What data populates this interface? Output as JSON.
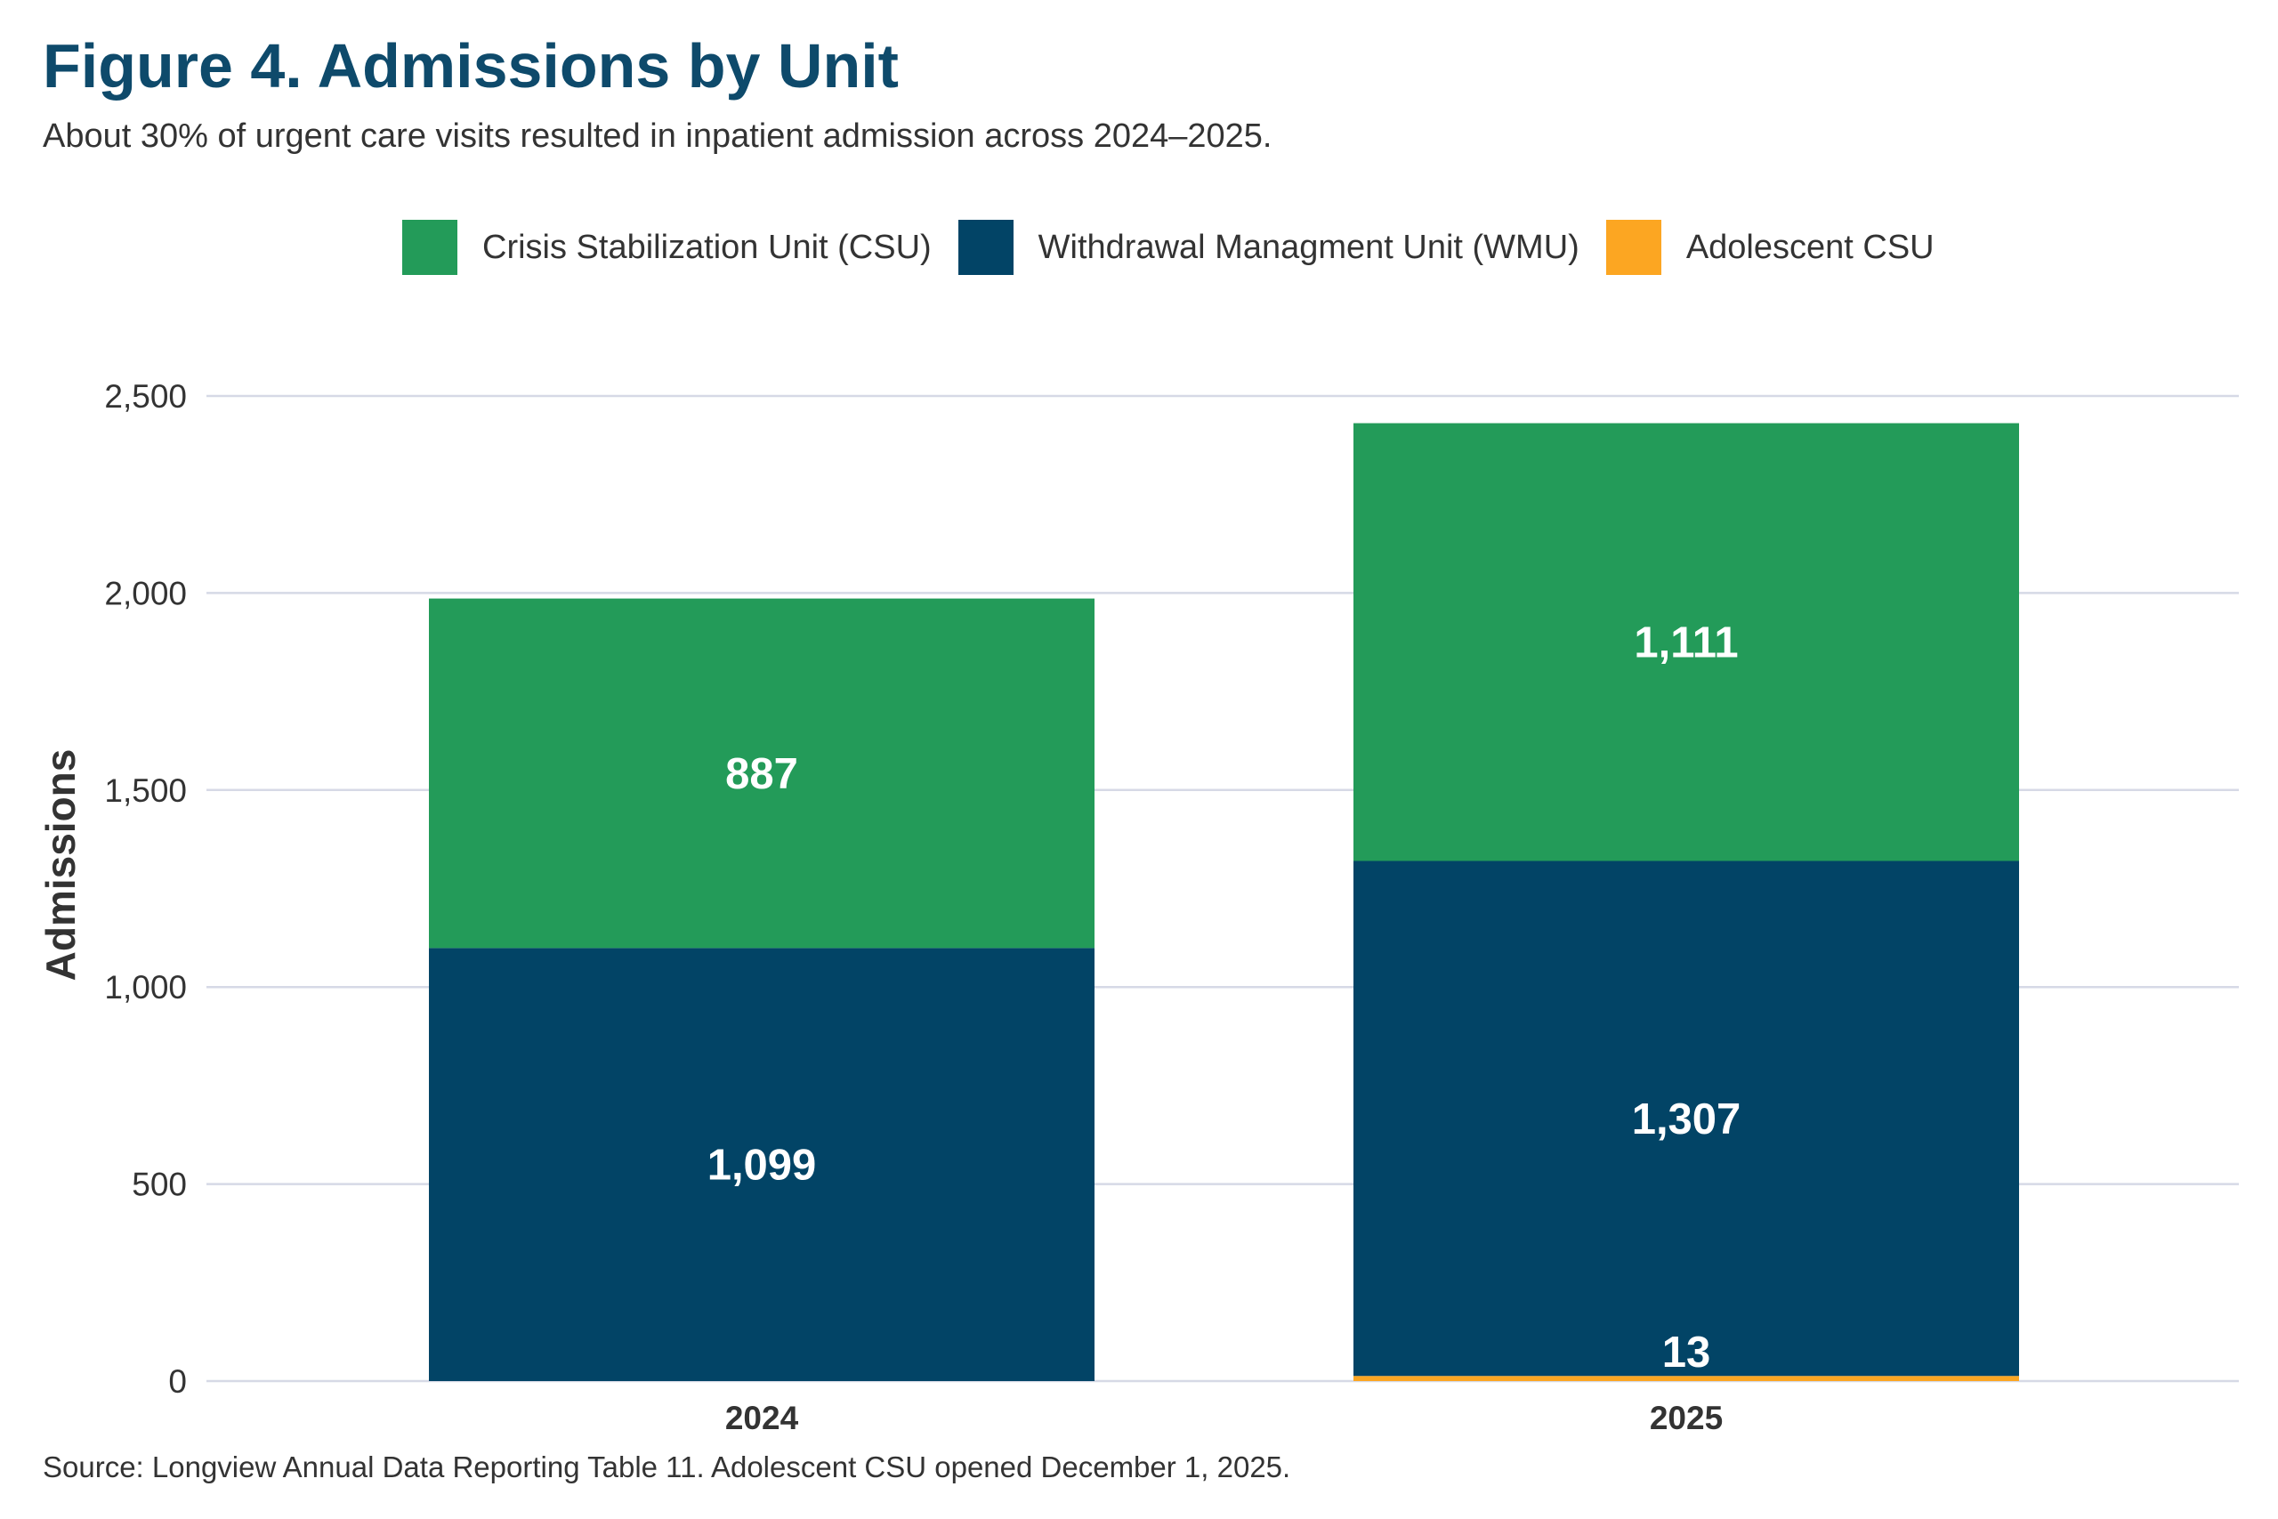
{
  "chart_data": {
    "type": "bar",
    "stacked": true,
    "title": "Figure 4. Admissions by Unit",
    "subtitle": "About 30% of urgent care visits resulted in inpatient admission across 2024–2025.",
    "xlabel": "",
    "ylabel": "Admissions",
    "categories": [
      "2024",
      "2025"
    ],
    "series": [
      {
        "name": "Adolescent CSU",
        "color": "#fca622",
        "values": [
          0,
          13
        ],
        "labels": [
          "",
          "13"
        ]
      },
      {
        "name": "Withdrawal Managment Unit (WMU)",
        "color": "#024466",
        "values": [
          1099,
          1307
        ],
        "labels": [
          "1,099",
          "1,307"
        ]
      },
      {
        "name": "Crisis Stabilization Unit (CSU)",
        "color": "#239b59",
        "values": [
          887,
          1111
        ],
        "labels": [
          "887",
          "1,111"
        ]
      }
    ],
    "legend_order": [
      "Crisis Stabilization Unit (CSU)",
      "Withdrawal Managment Unit (WMU)",
      "Adolescent CSU"
    ],
    "ylim": [
      0,
      2600
    ],
    "yticks": [
      0,
      500,
      1000,
      1500,
      2000,
      2500
    ],
    "ytick_labels": [
      "0",
      "500",
      "1,000",
      "1,500",
      "2,000",
      "2,500"
    ],
    "grid": true,
    "legend_position": "top",
    "source": "Source: Longview Annual Data Reporting Table 11. Adolescent CSU opened December 1, 2025."
  }
}
